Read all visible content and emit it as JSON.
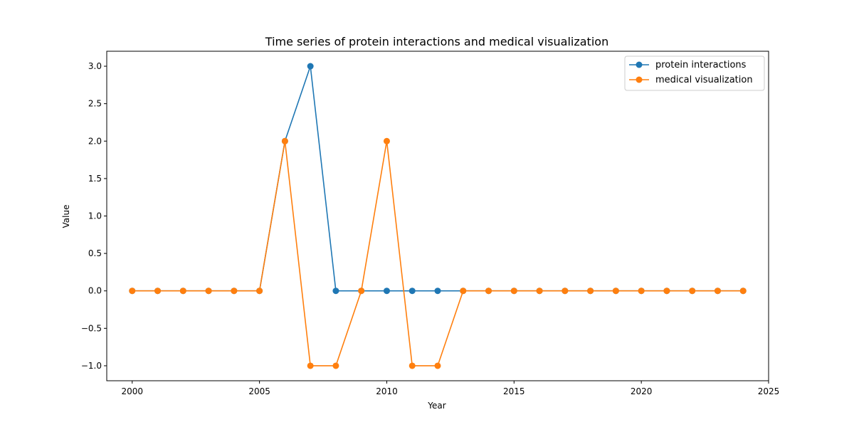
{
  "chart_data": {
    "type": "line",
    "title": "Time series of protein interactions and medical visualization",
    "xlabel": "Year",
    "ylabel": "Value",
    "xlim": [
      1999,
      2025
    ],
    "ylim": [
      -1.2,
      3.2
    ],
    "xticks": [
      2000,
      2005,
      2010,
      2015,
      2020,
      2025
    ],
    "yticks": [
      -1.0,
      -0.5,
      0.0,
      0.5,
      1.0,
      1.5,
      2.0,
      2.5,
      3.0
    ],
    "ytick_labels": [
      "−1.0",
      "−0.5",
      "0.0",
      "0.5",
      "1.0",
      "1.5",
      "2.0",
      "2.5",
      "3.0"
    ],
    "grid": false,
    "legend_position": "top-right",
    "x": [
      2000,
      2001,
      2002,
      2003,
      2004,
      2005,
      2006,
      2007,
      2008,
      2009,
      2010,
      2011,
      2012,
      2013,
      2014,
      2015,
      2016,
      2017,
      2018,
      2019,
      2020,
      2021,
      2022,
      2023,
      2024
    ],
    "series": [
      {
        "name": "protein interactions",
        "color": "#1f77b4",
        "values": [
          0,
          0,
          0,
          0,
          0,
          0,
          2,
          3,
          0,
          0,
          0,
          0,
          0,
          0,
          0,
          0,
          0,
          0,
          0,
          0,
          0,
          0,
          0,
          0,
          0
        ]
      },
      {
        "name": "medical visualization",
        "color": "#ff7f0e",
        "values": [
          0,
          0,
          0,
          0,
          0,
          0,
          2,
          -1,
          -1,
          0,
          2,
          -1,
          -1,
          0,
          0,
          0,
          0,
          0,
          0,
          0,
          0,
          0,
          0,
          0,
          0
        ]
      }
    ]
  }
}
